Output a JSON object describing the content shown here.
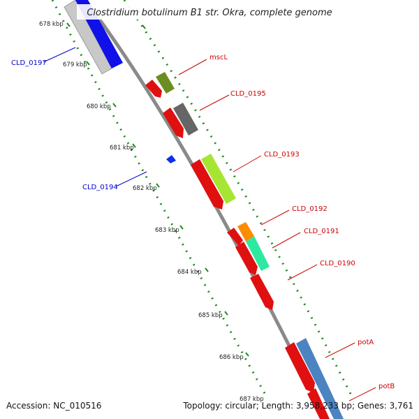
{
  "title": "Clostridium botulinum B1 str. Okra, complete genome",
  "footer": {
    "accession": "Accession: NC_010516",
    "topology": "Topology: circular; Length: 3,958,233 bp; Genes: 3,761"
  },
  "colors": {
    "backbone": "#8c8c8c",
    "tick": "#1a8a1a",
    "cds": "#e01010",
    "forward_label": "#cc0000",
    "reverse_label": "#0000cc"
  },
  "scale_labels": [
    "678 kbp",
    "679 kbp",
    "680 kbp",
    "681 kbp",
    "682 kbp",
    "683 kbp",
    "684 kbp",
    "685 kbp",
    "686 kbp",
    "687 kbp"
  ],
  "genes": [
    {
      "name": "CLD_0197",
      "strand": "reverse",
      "color": "#0000cc"
    },
    {
      "name": "mscL",
      "strand": "forward",
      "color": "#cc0000"
    },
    {
      "name": "CLD_0195",
      "strand": "forward",
      "color": "#cc0000"
    },
    {
      "name": "CLD_0193",
      "strand": "forward",
      "color": "#cc0000"
    },
    {
      "name": "CLD_0194",
      "strand": "reverse",
      "color": "#0000cc"
    },
    {
      "name": "CLD_0192",
      "strand": "forward",
      "color": "#cc0000"
    },
    {
      "name": "CLD_0191",
      "strand": "forward",
      "color": "#cc0000"
    },
    {
      "name": "CLD_0190",
      "strand": "forward",
      "color": "#cc0000"
    },
    {
      "name": "potA",
      "strand": "forward",
      "color": "#cc0000"
    },
    {
      "name": "potB",
      "strand": "forward",
      "color": "#cc0000"
    }
  ]
}
